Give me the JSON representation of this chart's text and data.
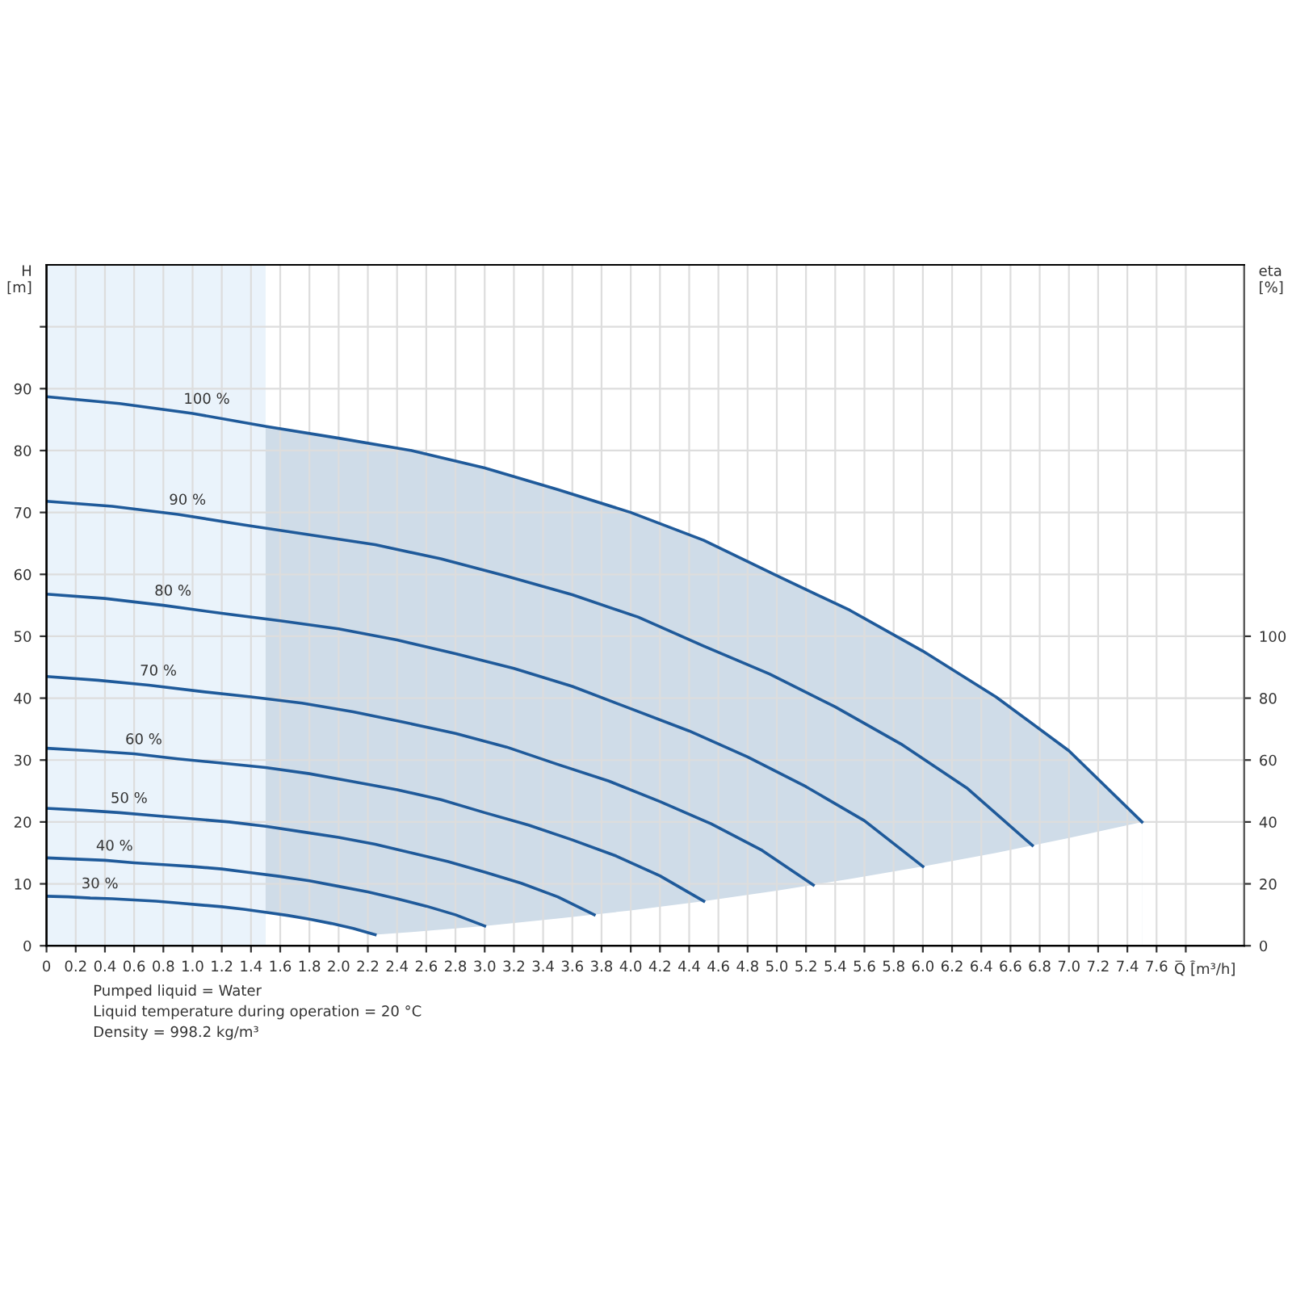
{
  "chart_data": {
    "type": "line",
    "xlabel": "Q [m³/h]",
    "ylabel": "H\n[m]",
    "y2label": "eta\n[%]",
    "xlim": [
      0,
      8.2
    ],
    "ylim": [
      0,
      110
    ],
    "y2lim": [
      0,
      220
    ],
    "xticks": [
      0,
      0.2,
      0.4,
      0.6,
      0.8,
      {
        "value": 1,
        "label": "1.0"
      },
      1.2,
      1.4,
      1.6,
      1.8,
      {
        "value": 2,
        "label": "2.0"
      },
      2.2,
      2.4,
      2.6,
      2.8,
      {
        "value": 3,
        "label": "3.0"
      },
      3.2,
      3.4,
      3.6,
      3.8,
      {
        "value": 4,
        "label": "4.0"
      },
      4.2,
      4.4,
      4.6,
      4.8,
      {
        "value": 5,
        "label": "5.0"
      },
      5.2,
      5.4,
      5.6,
      5.8,
      {
        "value": 6,
        "label": "6.0"
      },
      6.2,
      6.4,
      6.6,
      6.8,
      {
        "value": 7,
        "label": "7.0"
      },
      7.2,
      7.4,
      7.6,
      7.8
    ],
    "yticks": [
      0,
      10,
      20,
      30,
      40,
      50,
      60,
      70,
      80,
      90,
      {
        "value": 100,
        "label": null
      }
    ],
    "y2ticks": [
      0,
      20,
      40,
      60,
      80,
      100
    ],
    "grid": true,
    "legend": false,
    "marker": "none",
    "line_style": "solid",
    "bands": [
      {
        "axis": "x",
        "from": 0,
        "to": 1.5,
        "label": null,
        "color": "#eaf3fb"
      }
    ],
    "series": [
      {
        "type": "area",
        "color": "#cfdce8",
        "x": [
          1.5,
          2.0,
          2.25,
          2.5,
          3.0,
          3.5,
          4.0,
          4.5,
          5.0,
          5.5,
          6.0,
          6.5,
          7.0,
          7.5
        ],
        "values": [
          83.9,
          82.0,
          81.0,
          80.0,
          77.2,
          73.7,
          70.0,
          65.5,
          59.8,
          54.2,
          47.6,
          40.2,
          31.5,
          20.0
        ]
      },
      {
        "type": "area",
        "color": "#ffffff",
        "x": [
          1.5,
          2.0,
          2.25,
          2.5,
          3.0,
          3.5,
          4.0,
          4.5,
          5.0,
          5.5,
          6.0,
          6.5,
          7.0,
          7.5
        ],
        "values": [
          5.4,
          3.3,
          1.8,
          2.2,
          3.2,
          4.4,
          5.7,
          7.2,
          8.9,
          10.8,
          12.8,
          15.0,
          17.4,
          20.0
        ]
      },
      {
        "name": "100 %",
        "color": "#1f5a9a",
        "x": [
          0,
          0.5,
          1.0,
          1.5,
          2.0,
          2.5,
          3.0,
          3.5,
          4.0,
          4.5,
          5.0,
          5.5,
          6.0,
          6.5,
          7.0,
          7.5
        ],
        "values": [
          88.7,
          87.6,
          86.0,
          83.9,
          82.0,
          80.0,
          77.2,
          73.7,
          70.0,
          65.5,
          59.8,
          54.2,
          47.6,
          40.2,
          31.5,
          20.0
        ]
      },
      {
        "name": "90 %",
        "color": "#1f5a9a",
        "x": [
          0,
          0.45,
          0.9,
          1.35,
          1.8,
          2.25,
          2.7,
          3.15,
          3.6,
          4.05,
          4.5,
          4.95,
          5.4,
          5.85,
          6.3,
          6.75
        ],
        "values": [
          71.8,
          71.0,
          69.7,
          68.0,
          66.4,
          64.8,
          62.5,
          59.7,
          56.7,
          53.1,
          48.4,
          43.9,
          38.6,
          32.6,
          25.5,
          16.2
        ]
      },
      {
        "name": "80 %",
        "color": "#1f5a9a",
        "x": [
          0,
          0.4,
          0.8,
          1.2,
          1.6,
          2.0,
          2.4,
          2.8,
          3.2,
          3.6,
          4.0,
          4.4,
          4.8,
          5.2,
          5.6,
          6.0
        ],
        "values": [
          56.8,
          56.1,
          55.0,
          53.7,
          52.5,
          51.2,
          49.4,
          47.2,
          44.8,
          41.9,
          38.3,
          34.7,
          30.5,
          25.7,
          20.2,
          12.8
        ]
      },
      {
        "name": "70 %",
        "color": "#1f5a9a",
        "x": [
          0,
          0.35,
          0.7,
          1.05,
          1.4,
          1.75,
          2.1,
          2.45,
          2.8,
          3.15,
          3.5,
          3.85,
          4.2,
          4.55,
          4.9,
          5.25
        ],
        "values": [
          43.5,
          42.9,
          42.1,
          41.1,
          40.2,
          39.2,
          37.8,
          36.1,
          34.3,
          32.1,
          29.3,
          26.6,
          23.3,
          19.7,
          15.4,
          9.8
        ]
      },
      {
        "name": "60 %",
        "color": "#1f5a9a",
        "x": [
          0,
          0.3,
          0.6,
          0.9,
          1.2,
          1.5,
          1.8,
          2.1,
          2.4,
          2.7,
          3.0,
          3.3,
          3.6,
          3.9,
          4.2,
          4.5
        ],
        "values": [
          31.9,
          31.5,
          31.0,
          30.2,
          29.5,
          28.8,
          27.8,
          26.5,
          25.2,
          23.6,
          21.5,
          19.5,
          17.1,
          14.5,
          11.3,
          7.2
        ]
      },
      {
        "name": "50 %",
        "color": "#1f5a9a",
        "x": [
          0,
          0.25,
          0.5,
          0.75,
          1.0,
          1.25,
          1.5,
          1.75,
          2.0,
          2.25,
          2.5,
          2.75,
          3.0,
          3.25,
          3.5,
          3.75
        ],
        "values": [
          22.2,
          21.9,
          21.5,
          21.0,
          20.5,
          20.0,
          19.3,
          18.4,
          17.5,
          16.4,
          15.0,
          13.6,
          11.9,
          10.1,
          7.9,
          5.0
        ]
      },
      {
        "name": "40 %",
        "color": "#1f5a9a",
        "x": [
          0,
          0.2,
          0.4,
          0.6,
          0.8,
          1.0,
          1.2,
          1.4,
          1.6,
          1.8,
          2.0,
          2.2,
          2.4,
          2.6,
          2.8,
          3.0
        ],
        "values": [
          14.2,
          14.0,
          13.8,
          13.4,
          13.1,
          12.8,
          12.4,
          11.8,
          11.2,
          10.5,
          9.6,
          8.7,
          7.6,
          6.4,
          5.0,
          3.2
        ]
      },
      {
        "name": "30 %",
        "color": "#1f5a9a",
        "x": [
          0,
          0.15,
          0.3,
          0.45,
          0.6,
          0.75,
          0.9,
          1.05,
          1.2,
          1.35,
          1.5,
          1.65,
          1.8,
          1.95,
          2.1,
          2.25
        ],
        "values": [
          8.0,
          7.9,
          7.7,
          7.6,
          7.4,
          7.2,
          6.9,
          6.6,
          6.3,
          5.9,
          5.4,
          4.9,
          4.3,
          3.6,
          2.8,
          1.8
        ]
      }
    ],
    "annotations": [
      "Pumped liquid = Water",
      "Liquid temperature during operation = 20 °C",
      "Density = 998.2 kg/m³"
    ]
  }
}
